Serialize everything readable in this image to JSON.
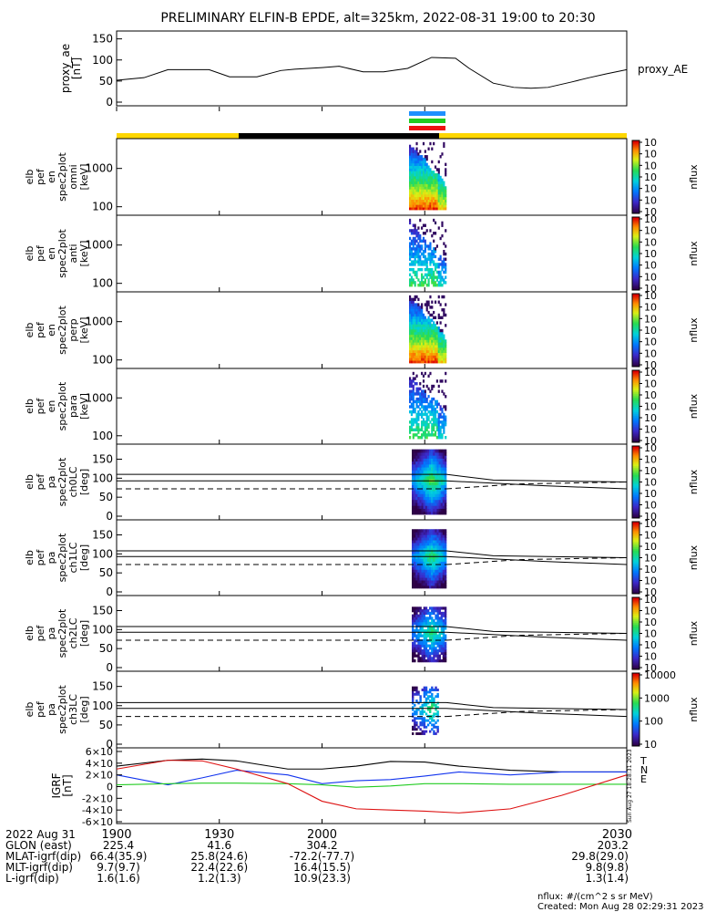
{
  "title": "PRELIMINARY ELFIN-B EPDE, alt=325km, 2022-08-31 19:00 to 20:30",
  "colors": {
    "yellow": "#ffd700",
    "black": "#000000",
    "blue": "#1e90ff",
    "green": "#22cc22",
    "red": "#ee1111"
  },
  "chart_data": [
    {
      "type": "line",
      "ylabel": [
        "proxy_ae",
        "[nT]"
      ],
      "legend": "proxy_AE",
      "yticks": [
        "0",
        "50",
        "100",
        "150"
      ],
      "ylim": [
        0,
        160
      ],
      "x_minutes": [
        0,
        8,
        15,
        20,
        27,
        33,
        41,
        48,
        52,
        60,
        65,
        72,
        78,
        85,
        92,
        99,
        103,
        110,
        116,
        121,
        126,
        133,
        138,
        143,
        149
      ],
      "values": [
        52,
        58,
        77,
        77,
        77,
        60,
        60,
        75,
        78,
        82,
        85,
        72,
        72,
        80,
        106,
        104,
        80,
        45,
        35,
        33,
        35,
        48,
        58,
        67,
        77
      ]
    },
    {
      "type": "heatmap",
      "ylabel": [
        "elb",
        "pef",
        "en",
        "spec2plot",
        "omni",
        "[keV]"
      ],
      "yticks": [
        "100",
        "1000"
      ],
      "colorbar_label": "nflux",
      "colorbar_ticks": [
        "10<sup>1</sup>",
        "10<sup>2</sup>",
        "10<sup>3</sup>",
        "10<sup>4</sup>",
        "10<sup>5</sup>",
        "10<sup>6</sup>",
        "10<sup>7</sup>"
      ]
    },
    {
      "type": "heatmap",
      "ylabel": [
        "elb",
        "pef",
        "en",
        "spec2plot",
        "anti",
        "[keV]"
      ],
      "yticks": [
        "100",
        "1000"
      ],
      "colorbar_label": "nflux"
    },
    {
      "type": "heatmap",
      "ylabel": [
        "elb",
        "pef",
        "en",
        "spec2plot",
        "perp",
        "[keV]"
      ],
      "yticks": [
        "100",
        "1000"
      ],
      "colorbar_label": "nflux"
    },
    {
      "type": "heatmap",
      "ylabel": [
        "elb",
        "pef",
        "en",
        "spec2plot",
        "para",
        "[keV]"
      ],
      "yticks": [
        "100",
        "1000"
      ],
      "colorbar_label": "nflux"
    },
    {
      "type": "heatmap",
      "ylabel": [
        "elb",
        "pef",
        "pa",
        "spec2plot",
        "ch0LC",
        "[deg]"
      ],
      "yticks": [
        "0",
        "50",
        "100",
        "150"
      ],
      "colorbar_label": "nflux"
    },
    {
      "type": "heatmap",
      "ylabel": [
        "elb",
        "pef",
        "pa",
        "spec2plot",
        "ch1LC",
        "[deg]"
      ],
      "yticks": [
        "0",
        "50",
        "100",
        "150"
      ],
      "colorbar_label": "nflux"
    },
    {
      "type": "heatmap",
      "ylabel": [
        "elb",
        "pef",
        "pa",
        "spec2plot",
        "ch2LC",
        "[deg]"
      ],
      "yticks": [
        "0",
        "50",
        "100",
        "150"
      ],
      "colorbar_label": "nflux"
    },
    {
      "type": "heatmap",
      "ylabel": [
        "elb",
        "pef",
        "pa",
        "spec2plot",
        "ch3LC",
        "[deg]"
      ],
      "yticks": [
        "0",
        "50",
        "100",
        "150"
      ],
      "colorbar_label": "nflux",
      "colorbar_ticks": [
        "10",
        "100",
        "1000",
        "10000"
      ]
    },
    {
      "type": "line",
      "ylabel": [
        "IGRF",
        "[nT]"
      ],
      "yticks": [
        "-6×10<sup>4</sup>",
        "-4×10<sup>4</sup>",
        "-2×10<sup>4</sup>",
        "0",
        "2×10<sup>4</sup>",
        "4×10<sup>4</sup>",
        "6×10<sup>4</sup>"
      ],
      "ylim": [
        -60000,
        60000
      ],
      "legend": [
        "T",
        "N",
        "E"
      ],
      "x_minutes": [
        0,
        15,
        25,
        35,
        50,
        60,
        70,
        80,
        90,
        100,
        115,
        130,
        149
      ],
      "series": [
        {
          "name": "T",
          "values": [
            35000,
            45000,
            47000,
            44000,
            30000,
            30000,
            35000,
            43000,
            42000,
            35000,
            28000,
            25000,
            25000
          ]
        },
        {
          "name": "N",
          "values": [
            20000,
            3000,
            15000,
            28000,
            20000,
            5000,
            10000,
            12000,
            18000,
            25000,
            20000,
            25000,
            25000
          ]
        },
        {
          "name": "E",
          "values": [
            3000,
            5000,
            6000,
            6000,
            5000,
            3000,
            -1000,
            1000,
            5000,
            5000,
            4000,
            4000,
            4000
          ]
        },
        {
          "name": "red",
          "values": [
            30000,
            45000,
            44000,
            30000,
            5000,
            -25000,
            -38000,
            -40000,
            -42000,
            -45000,
            -38000,
            -15000,
            20000
          ]
        }
      ]
    }
  ],
  "xaxis": {
    "ticks": [
      "1900",
      "1930",
      "2000",
      "2030"
    ],
    "rows": [
      {
        "label": "2022 Aug 31",
        "values": [
          "",
          "",
          "",
          ""
        ]
      },
      {
        "label": "GLON (east)",
        "values": [
          "225.4",
          "41.6",
          "304.2",
          "203.2"
        ]
      },
      {
        "label": "MLAT-igrf(dip)",
        "values": [
          "66.4(35.9)",
          "25.8(24.6)",
          "-72.2(-77.7)",
          "29.8(29.0)"
        ]
      },
      {
        "label": "MLT-igrf(dip)",
        "values": [
          "9.7(9.7)",
          "22.4(22.6)",
          "16.4(15.5)",
          "9.8(9.8)"
        ]
      },
      {
        "label": "L-igrf(dip)",
        "values": [
          "1.6(1.6)",
          "1.2(1.3)",
          "10.9(23.3)",
          "1.3(1.4)"
        ]
      }
    ]
  },
  "footer": {
    "line1": "nflux: #/(cm^2 s sr MeV)",
    "line2": "Created: Mon Aug 28 02:29:31 2023"
  },
  "side_note": "Sun Aug 27 18:28:31 2023"
}
